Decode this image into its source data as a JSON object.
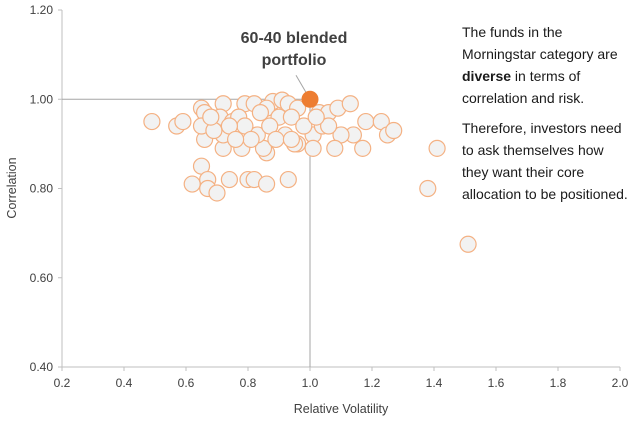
{
  "chart_data": {
    "type": "scatter",
    "title": "",
    "xlabel": "Relative Volatility",
    "ylabel": "Correlation",
    "xlim": [
      0.2,
      2.0
    ],
    "ylim": [
      0.4,
      1.2
    ],
    "xticks": [
      "0.2",
      "0.4",
      "0.6",
      "0.8",
      "1.0",
      "1.2",
      "1.4",
      "1.6",
      "1.8",
      "2.0"
    ],
    "yticks": [
      "0.40",
      "0.60",
      "0.80",
      "1.00",
      "1.20"
    ],
    "grid": false,
    "reference_lines": {
      "x": 1.0,
      "y": 1.0
    },
    "colors": {
      "point_fill": "#f2f2f2",
      "point_stroke": "#f4b183",
      "highlight": "#ed7d31",
      "ref_line": "#a5a5a5"
    },
    "series": [
      {
        "name": "Morningstar category funds",
        "points": [
          [
            0.49,
            0.95
          ],
          [
            0.57,
            0.94
          ],
          [
            0.59,
            0.95
          ],
          [
            0.65,
            0.85
          ],
          [
            0.62,
            0.81
          ],
          [
            0.67,
            0.82
          ],
          [
            0.67,
            0.8
          ],
          [
            0.7,
            0.79
          ],
          [
            0.74,
            0.82
          ],
          [
            0.8,
            0.82
          ],
          [
            0.82,
            0.82
          ],
          [
            0.86,
            0.81
          ],
          [
            0.93,
            0.82
          ],
          [
            0.65,
            0.98
          ],
          [
            0.66,
            0.97
          ],
          [
            0.72,
            0.99
          ],
          [
            0.79,
            0.99
          ],
          [
            0.82,
            0.99
          ],
          [
            0.88,
            0.995
          ],
          [
            0.91,
            0.998
          ],
          [
            0.93,
            0.99
          ],
          [
            0.86,
            0.98
          ],
          [
            0.84,
            0.97
          ],
          [
            0.96,
            0.98
          ],
          [
            1.03,
            0.97
          ],
          [
            1.06,
            0.97
          ],
          [
            1.09,
            0.98
          ],
          [
            1.13,
            0.99
          ],
          [
            1.18,
            0.95
          ],
          [
            1.23,
            0.95
          ],
          [
            1.25,
            0.92
          ],
          [
            1.14,
            0.92
          ],
          [
            1.1,
            0.92
          ],
          [
            1.08,
            0.89
          ],
          [
            1.17,
            0.89
          ],
          [
            1.01,
            0.92
          ],
          [
            1.01,
            0.89
          ],
          [
            0.96,
            0.9
          ],
          [
            0.95,
            0.9
          ],
          [
            0.92,
            0.92
          ],
          [
            0.86,
            0.88
          ],
          [
            0.85,
            0.89
          ],
          [
            0.83,
            0.92
          ],
          [
            0.78,
            0.89
          ],
          [
            0.72,
            0.89
          ],
          [
            0.72,
            0.92
          ],
          [
            0.66,
            0.91
          ],
          [
            0.65,
            0.94
          ],
          [
            0.71,
            0.96
          ],
          [
            0.75,
            0.95
          ],
          [
            0.77,
            0.96
          ],
          [
            0.9,
            0.96
          ],
          [
            0.94,
            0.96
          ],
          [
            0.98,
            0.94
          ],
          [
            1.04,
            0.94
          ],
          [
            1.06,
            0.94
          ],
          [
            0.87,
            0.94
          ],
          [
            0.79,
            0.94
          ],
          [
            0.74,
            0.94
          ],
          [
            0.69,
            0.93
          ],
          [
            0.89,
            0.91
          ],
          [
            0.94,
            0.91
          ],
          [
            0.81,
            0.91
          ],
          [
            0.76,
            0.91
          ],
          [
            0.68,
            0.96
          ],
          [
            1.02,
            0.96
          ],
          [
            1.27,
            0.93
          ],
          [
            1.41,
            0.89
          ],
          [
            1.38,
            0.8
          ],
          [
            1.51,
            0.675
          ]
        ]
      },
      {
        "name": "60-40 blended portfolio",
        "points": [
          [
            1.0,
            1.0
          ]
        ]
      }
    ],
    "annotations": {
      "highlight_label": [
        "60-40 blended",
        "portfolio"
      ],
      "paragraph1": {
        "before": "The funds in the Morningstar category are ",
        "bold": "diverse",
        "after": " in terms of correlation and risk."
      },
      "paragraph2": "Therefore, investors need to ask themselves how they want their core allocation to be positioned."
    }
  }
}
